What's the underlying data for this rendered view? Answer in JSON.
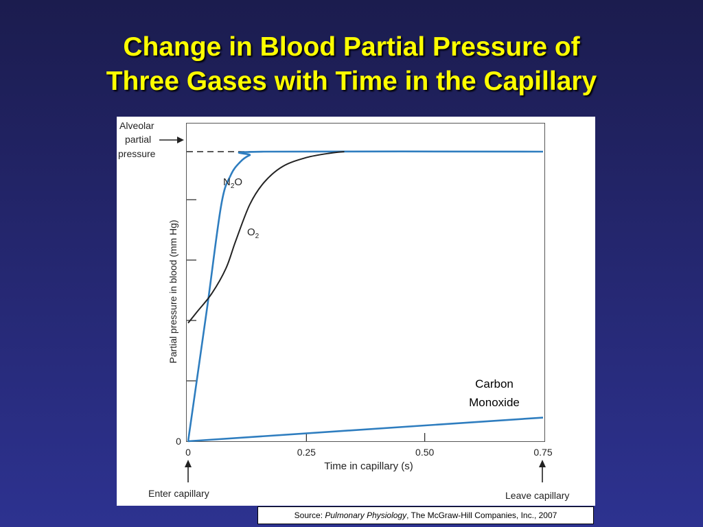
{
  "slide": {
    "title_line1": "Change in Blood Partial Pressure of",
    "title_line2": "Three Gases with Time in the Capillary"
  },
  "source": {
    "prefix": "Source: ",
    "book": "Pulmonary Physiology",
    "suffix": ", The McGraw-Hill Companies, Inc., 2007"
  },
  "chart_data": {
    "type": "line",
    "xlabel": "Time in capillary (s)",
    "ylabel": "Partial pressure in blood (mm Hg)",
    "x_ticks": [
      "0",
      "0.25",
      "0.50",
      "0.75"
    ],
    "y_tick_zero": "0",
    "xlim": [
      0,
      0.75
    ],
    "ylim": [
      0,
      100
    ],
    "alveolar_label": [
      "Alveolar",
      "partial",
      "pressure"
    ],
    "alveolar_level": 98,
    "enter_label": "Enter capillary",
    "leave_label": "Leave capillary",
    "series": [
      {
        "name": "N2O",
        "label_main": "N",
        "label_sub": "2",
        "label_tail": "O",
        "color": "#2e7dbf",
        "x": [
          0,
          0.04,
          0.07,
          0.09,
          0.11,
          0.13,
          0.16,
          0.75
        ],
        "y": [
          0,
          45,
          80,
          90,
          94.5,
          96.8,
          98,
          98
        ]
      },
      {
        "name": "O2",
        "label_main": "O",
        "label_sub": "2",
        "label_tail": "",
        "color": "#222222",
        "x": [
          0,
          0.02,
          0.05,
          0.08,
          0.1,
          0.13,
          0.16,
          0.2,
          0.25,
          0.3,
          0.33
        ],
        "y": [
          40,
          44,
          50,
          58.5,
          67.5,
          80,
          87.5,
          93,
          96,
          97.5,
          98
        ]
      },
      {
        "name": "Carbon Monoxide",
        "label_lines": [
          "Carbon",
          "Monoxide"
        ],
        "color": "#2e7dbf",
        "x": [
          0,
          0.75
        ],
        "y": [
          0,
          8
        ]
      }
    ]
  }
}
